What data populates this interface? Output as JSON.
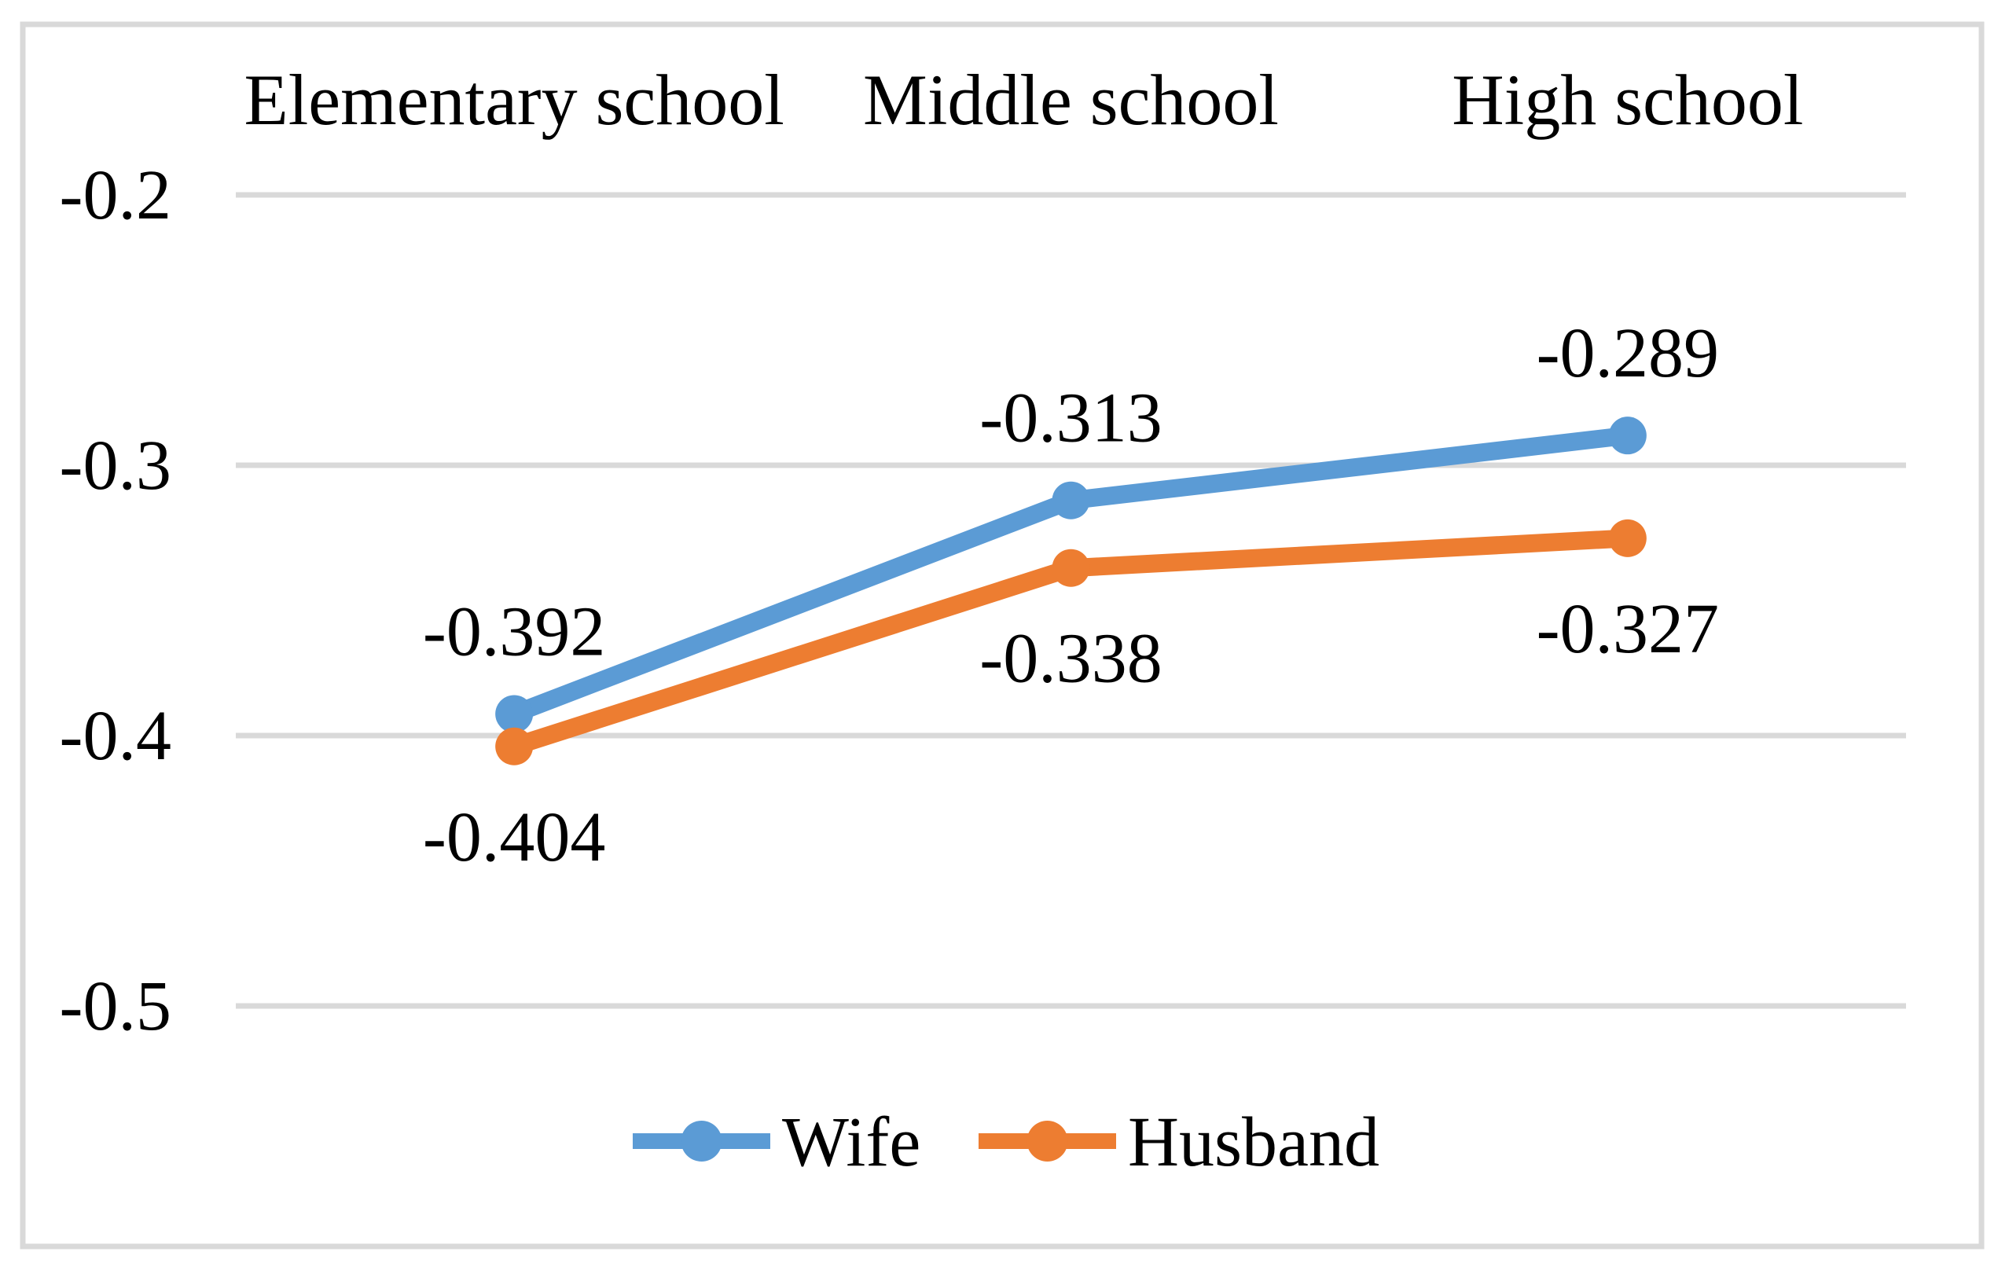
{
  "figure": {
    "background_color": "#ffffff",
    "border_color": "#d9d9d9",
    "text_color": "#000000"
  },
  "chart_data": {
    "type": "line",
    "categories": [
      "Elementary school",
      "Middle school",
      "High school"
    ],
    "series": [
      {
        "name": "Wife",
        "color": "#5b9bd5",
        "values": [
          -0.392,
          -0.313,
          -0.289
        ],
        "data_labels": [
          "-0.392",
          "-0.313",
          "-0.289"
        ],
        "label_position": "above"
      },
      {
        "name": "Husband",
        "color": "#ed7d31",
        "values": [
          -0.404,
          -0.338,
          -0.327
        ],
        "data_labels": [
          "-0.404",
          "-0.338",
          "-0.327"
        ],
        "label_position": "below"
      }
    ],
    "y_axis": {
      "min": -0.5,
      "max": -0.2,
      "tick_step": 0.1,
      "ticks": [
        -0.2,
        -0.3,
        -0.4,
        -0.5
      ],
      "tick_labels": [
        "-0.2",
        "-0.3",
        "-0.4",
        "-0.5"
      ]
    },
    "x_axis": {
      "labels_position": "top"
    },
    "gridlines": {
      "show": true,
      "color": "#d9d9d9",
      "orientation": "horizontal"
    },
    "legend": {
      "position": "bottom",
      "entries": [
        "Wife",
        "Husband"
      ]
    }
  }
}
